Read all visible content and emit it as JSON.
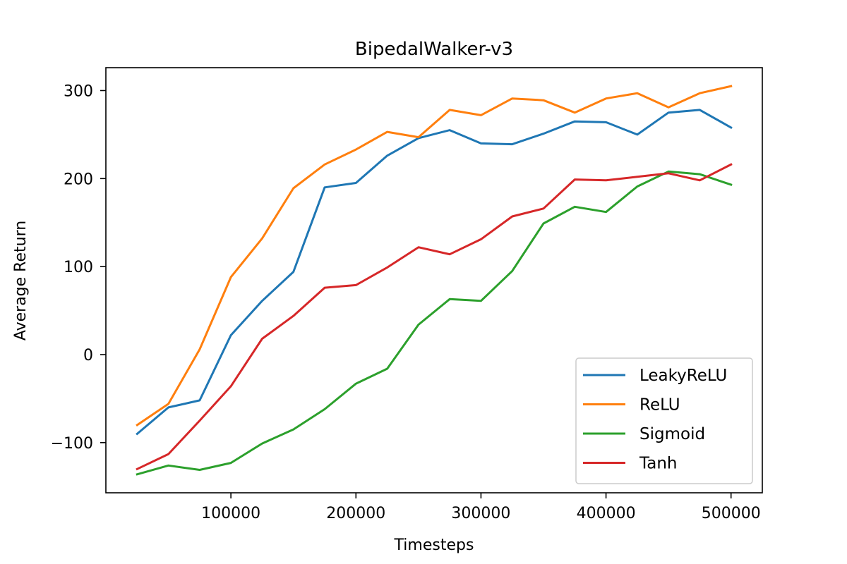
{
  "chart_data": {
    "type": "line",
    "title": "BipedalWalker-v3",
    "xlabel": "Timesteps",
    "ylabel": "Average Return",
    "xlim": [
      0,
      525000
    ],
    "ylim": [
      -157,
      326
    ],
    "xticks": [
      100000,
      200000,
      300000,
      400000,
      500000
    ],
    "xtick_labels": [
      "100000",
      "200000",
      "300000",
      "400000",
      "500000"
    ],
    "yticks": [
      -100,
      0,
      100,
      200,
      300
    ],
    "ytick_labels": [
      "−100",
      "0",
      "100",
      "200",
      "300"
    ],
    "grid": false,
    "legend_position": "lower-right",
    "x": [
      25000,
      50000,
      75000,
      100000,
      125000,
      150000,
      175000,
      200000,
      225000,
      250000,
      275000,
      300000,
      325000,
      350000,
      375000,
      400000,
      425000,
      450000,
      475000,
      500000
    ],
    "series": [
      {
        "name": "LeakyReLU",
        "color": "#1f77b4",
        "values": [
          -90,
          -60,
          -52,
          22,
          61,
          94,
          190,
          195,
          226,
          246,
          255,
          240,
          239,
          251,
          265,
          264,
          250,
          275,
          278,
          258
        ]
      },
      {
        "name": "ReLU",
        "color": "#ff7f0e",
        "values": [
          -80,
          -56,
          6,
          88,
          132,
          189,
          216,
          233,
          253,
          247,
          278,
          272,
          291,
          289,
          275,
          291,
          297,
          281,
          297,
          305
        ]
      },
      {
        "name": "Sigmoid",
        "color": "#2ca02c",
        "values": [
          -136,
          -126,
          -131,
          -123,
          -101,
          -85,
          -62,
          -33,
          -16,
          34,
          63,
          61,
          95,
          149,
          168,
          162,
          191,
          208,
          205,
          193
        ]
      },
      {
        "name": "Tanh",
        "color": "#d62728",
        "values": [
          -130,
          -113,
          -75,
          -36,
          18,
          44,
          76,
          79,
          99,
          122,
          114,
          131,
          157,
          166,
          199,
          198,
          202,
          206,
          198,
          216
        ]
      }
    ]
  }
}
